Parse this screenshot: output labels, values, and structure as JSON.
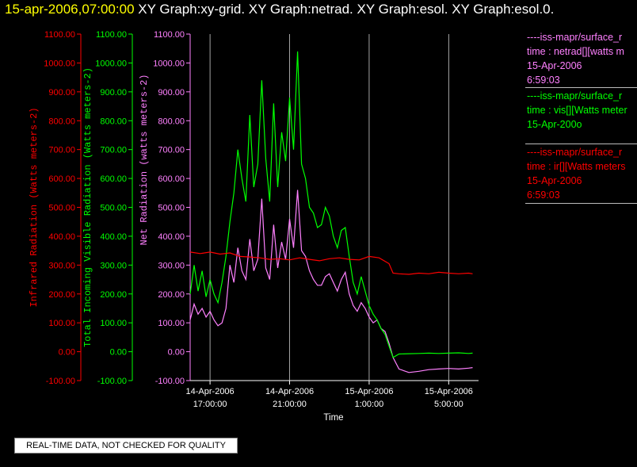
{
  "header": {
    "datetime": "15-apr-2006,07:00:00",
    "graphs": "XY Graph:xy-grid.  XY Graph:netrad.  XY Graph:esol.  XY Graph:esol.0."
  },
  "note": "REAL-TIME DATA, NOT CHECKED FOR QUALITY",
  "legend": [
    {
      "lines": [
        "----iss-mapr/surface_r",
        "time : netrad[][watts m",
        "15-Apr-2006",
        "6:59:03"
      ],
      "color": "#ff80ff"
    },
    {
      "lines": [
        "----iss-mapr/surface_r",
        "time : vis[][Watts meter",
        "15-Apr-200o"
      ],
      "color": "#00ff00"
    },
    {
      "lines": [
        "----iss-mapr/surface_r",
        "time : ir[][Watts meters",
        "15-Apr-2006",
        "6:59:03"
      ],
      "color": "#ff0000"
    }
  ],
  "chart_data": {
    "type": "line",
    "xlabel": "Time",
    "x_ticks": [
      {
        "hours": 1,
        "date": "14-Apr-2006",
        "time": "17:00:00"
      },
      {
        "hours": 5,
        "date": "14-Apr-2006",
        "time": "21:00:00"
      },
      {
        "hours": 9,
        "date": "15-Apr-2006",
        "time": "1:00:00"
      },
      {
        "hours": 13,
        "date": "15-Apr-2006",
        "time": "5:00:00"
      }
    ],
    "x_start_time": "14-Apr-2006 16:00:00",
    "xlim_hours": [
      0,
      14.5
    ],
    "ylim": [
      -100,
      1100
    ],
    "y_ticks": [
      -100,
      0,
      100,
      200,
      300,
      400,
      500,
      600,
      700,
      800,
      900,
      1000,
      1100
    ],
    "y_tick_labels": [
      "-100.00",
      "0.00",
      "100.00",
      "200.00",
      "300.00",
      "400.00",
      "500.00",
      "600.00",
      "700.00",
      "800.00",
      "900.00",
      "1000.00",
      "1100.00"
    ],
    "axes": [
      {
        "label": "Infrared Radiation (Watts meters-2)",
        "color": "#ff0000"
      },
      {
        "label": "Total Incoming Visible Radiation (Watts meters-2)",
        "color": "#00ff00"
      },
      {
        "label": "Net Radiation (watts meters-2)",
        "color": "#ff80ff"
      }
    ],
    "series": [
      {
        "name": "netrad",
        "color": "#ff80ff",
        "x": [
          0,
          0.2,
          0.4,
          0.6,
          0.8,
          1.0,
          1.2,
          1.4,
          1.6,
          1.8,
          2.0,
          2.2,
          2.4,
          2.6,
          2.8,
          3.0,
          3.2,
          3.4,
          3.6,
          3.8,
          4.0,
          4.2,
          4.4,
          4.6,
          4.8,
          5.0,
          5.2,
          5.4,
          5.6,
          5.8,
          6.0,
          6.2,
          6.4,
          6.6,
          6.8,
          7.0,
          7.2,
          7.4,
          7.6,
          7.8,
          8.0,
          8.2,
          8.4,
          8.6,
          8.8,
          9.0,
          9.2,
          9.4,
          9.6,
          9.8,
          10.0,
          10.2,
          10.5,
          11.0,
          11.5,
          12.0,
          12.5,
          13.0,
          13.5,
          14.0,
          14.2
        ],
        "y": [
          110,
          165,
          130,
          150,
          120,
          140,
          110,
          90,
          100,
          150,
          300,
          240,
          360,
          280,
          250,
          390,
          280,
          320,
          530,
          290,
          250,
          440,
          290,
          380,
          320,
          460,
          360,
          560,
          350,
          330,
          280,
          250,
          230,
          230,
          260,
          270,
          240,
          210,
          250,
          275,
          200,
          160,
          140,
          170,
          150,
          120,
          100,
          110,
          80,
          70,
          30,
          -20,
          -60,
          -72,
          -68,
          -62,
          -60,
          -58,
          -60,
          -57,
          -55
        ]
      },
      {
        "name": "vis",
        "color": "#00ff00",
        "x": [
          0,
          0.2,
          0.4,
          0.6,
          0.8,
          1.0,
          1.2,
          1.4,
          1.6,
          1.8,
          2.0,
          2.2,
          2.4,
          2.6,
          2.8,
          3.0,
          3.2,
          3.4,
          3.6,
          3.8,
          4.0,
          4.2,
          4.4,
          4.6,
          4.8,
          5.0,
          5.2,
          5.4,
          5.6,
          5.8,
          6.0,
          6.2,
          6.4,
          6.6,
          6.8,
          7.0,
          7.2,
          7.4,
          7.6,
          7.8,
          8.0,
          8.2,
          8.4,
          8.6,
          8.8,
          9.0,
          9.2,
          9.4,
          9.6,
          9.8,
          10.0,
          10.2,
          10.5,
          11.0,
          11.5,
          12.0,
          12.5,
          13.0,
          13.5,
          14.0,
          14.2
        ],
        "y": [
          200,
          300,
          210,
          280,
          190,
          250,
          200,
          170,
          240,
          330,
          450,
          550,
          700,
          600,
          520,
          820,
          570,
          650,
          940,
          670,
          520,
          860,
          570,
          760,
          660,
          880,
          700,
          1040,
          650,
          600,
          500,
          480,
          430,
          440,
          500,
          470,
          400,
          360,
          420,
          430,
          330,
          240,
          200,
          260,
          210,
          160,
          130,
          110,
          80,
          60,
          20,
          -20,
          -8,
          -7,
          -6,
          -5,
          -6,
          -5,
          -4,
          -6,
          -5
        ]
      },
      {
        "name": "ir",
        "color": "#ff0000",
        "x": [
          0,
          0.5,
          1.0,
          1.5,
          2.0,
          2.5,
          3.0,
          3.5,
          4.0,
          4.5,
          5.0,
          5.5,
          6.0,
          6.5,
          7.0,
          7.5,
          8.0,
          8.5,
          9.0,
          9.5,
          10.0,
          10.2,
          10.5,
          11.0,
          11.5,
          12.0,
          12.5,
          13.0,
          13.5,
          14.0,
          14.2
        ],
        "y": [
          345,
          340,
          345,
          338,
          342,
          330,
          328,
          325,
          320,
          322,
          318,
          325,
          320,
          315,
          322,
          325,
          320,
          318,
          330,
          325,
          305,
          272,
          270,
          268,
          272,
          270,
          275,
          272,
          270,
          272,
          270
        ]
      }
    ]
  }
}
